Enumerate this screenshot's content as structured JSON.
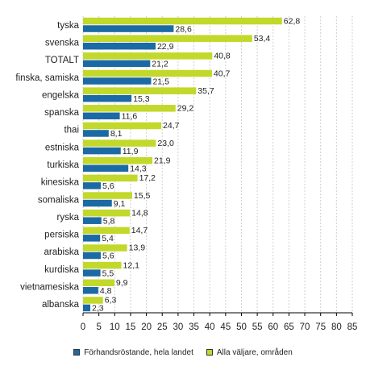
{
  "chart_data": {
    "type": "bar",
    "orientation": "horizontal",
    "categories": [
      "tyska",
      "svenska",
      "TOTALT",
      "finska, samiska",
      "engelska",
      "spanska",
      "thai",
      "estniska",
      "turkiska",
      "kinesiska",
      "somaliska",
      "ryska",
      "persiska",
      "arabiska",
      "kurdiska",
      "vietnamesiska",
      "albanska"
    ],
    "series": [
      {
        "name": "Alla väljare, områden",
        "color": "#c2d82a",
        "values": [
          62.8,
          53.4,
          40.8,
          40.7,
          35.7,
          29.2,
          24.7,
          23.0,
          21.9,
          17.2,
          15.5,
          14.8,
          14.7,
          13.9,
          12.1,
          9.9,
          6.3
        ],
        "labels": [
          "62,8",
          "53,4",
          "40,8",
          "40,7",
          "35,7",
          "29,2",
          "24,7",
          "23,0",
          "21,9",
          "17,2",
          "15,5",
          "14,8",
          "14,7",
          "13,9",
          "12,1",
          "9,9",
          "6,3"
        ]
      },
      {
        "name": "Förhandsröstande, hela landet",
        "color": "#1b6aa5",
        "values": [
          28.6,
          22.9,
          21.2,
          21.5,
          15.3,
          11.6,
          8.1,
          11.9,
          14.3,
          5.6,
          9.1,
          5.8,
          5.4,
          5.6,
          5.5,
          4.8,
          2.3
        ],
        "labels": [
          "28,6",
          "22,9",
          "21,2",
          "21,5",
          "15,3",
          "11,6",
          "8,1",
          "11,9",
          "14,3",
          "5,6",
          "9,1",
          "5,8",
          "5,4",
          "5,6",
          "5,5",
          "4,8",
          "2,3"
        ]
      }
    ],
    "xlim": [
      0,
      85
    ],
    "xticks": [
      0,
      5,
      10,
      15,
      20,
      25,
      30,
      35,
      40,
      45,
      50,
      55,
      60,
      65,
      70,
      75,
      80,
      85
    ],
    "grid": true,
    "legend_position": "bottom"
  },
  "legend": {
    "items": [
      {
        "label": "Förhandsröstande, hela landet",
        "color": "#1b6aa5"
      },
      {
        "label": "Alla väljare, områden",
        "color": "#c2d82a"
      }
    ]
  }
}
